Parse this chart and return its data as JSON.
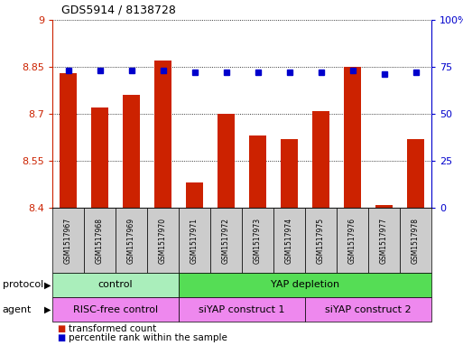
{
  "title": "GDS5914 / 8138728",
  "samples": [
    "GSM1517967",
    "GSM1517968",
    "GSM1517969",
    "GSM1517970",
    "GSM1517971",
    "GSM1517972",
    "GSM1517973",
    "GSM1517974",
    "GSM1517975",
    "GSM1517976",
    "GSM1517977",
    "GSM1517978"
  ],
  "transformed_count": [
    8.83,
    8.72,
    8.76,
    8.87,
    8.48,
    8.7,
    8.63,
    8.62,
    8.71,
    8.85,
    8.41,
    8.62
  ],
  "percentile_rank": [
    73,
    73,
    73,
    73,
    72,
    72,
    72,
    72,
    72,
    73,
    71,
    72
  ],
  "ylim_left": [
    8.4,
    9.0
  ],
  "ylim_right": [
    0,
    100
  ],
  "yticks_left": [
    8.4,
    8.55,
    8.7,
    8.85,
    9.0
  ],
  "yticks_right": [
    0,
    25,
    50,
    75,
    100
  ],
  "ytick_labels_left": [
    "8.4",
    "8.55",
    "8.7",
    "8.85",
    "9"
  ],
  "ytick_labels_right": [
    "0",
    "25",
    "50",
    "75",
    "100%"
  ],
  "bar_color": "#cc2200",
  "dot_color": "#0000cc",
  "bar_bottom": 8.4,
  "protocol_groups": [
    {
      "label": "control",
      "start": 0,
      "end": 4,
      "color": "#aaeebb"
    },
    {
      "label": "YAP depletion",
      "start": 4,
      "end": 12,
      "color": "#55dd55"
    }
  ],
  "agent_groups": [
    {
      "label": "RISC-free control",
      "start": 0,
      "end": 4,
      "color": "#ee88ee"
    },
    {
      "label": "siYAP construct 1",
      "start": 4,
      "end": 8,
      "color": "#ee88ee"
    },
    {
      "label": "siYAP construct 2",
      "start": 8,
      "end": 12,
      "color": "#ee88ee"
    }
  ],
  "protocol_label": "protocol",
  "agent_label": "agent",
  "legend_transformed": "transformed count",
  "legend_percentile": "percentile rank within the sample",
  "sample_box_color": "#cccccc",
  "bg_color": "#ffffff",
  "ylabel_left_color": "#cc2200",
  "ylabel_right_color": "#0000cc"
}
